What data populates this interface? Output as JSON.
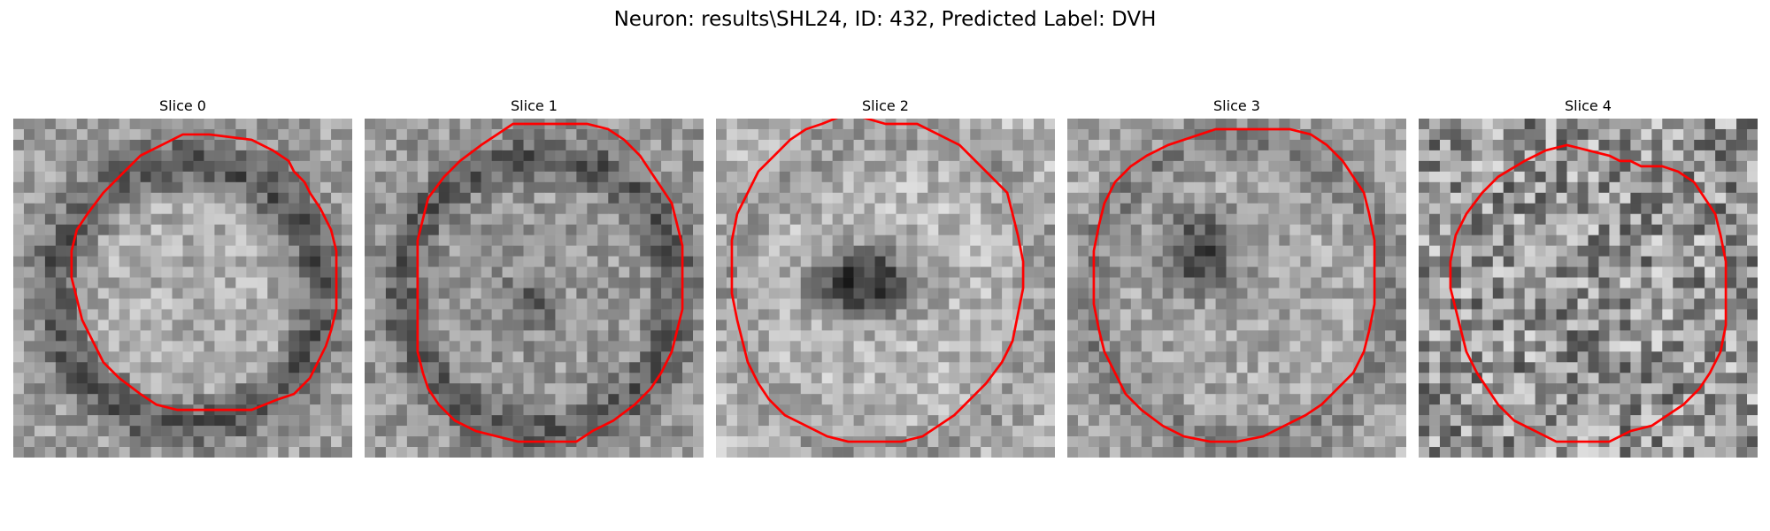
{
  "figure": {
    "title": "Neuron: results\\SHL24, ID: 432, Predicted Label: DVH"
  },
  "panels": [
    {
      "title": "Slice 0",
      "seed": 11,
      "pattern": "ring",
      "contour": [
        [
          28,
          5
        ],
        [
          32,
          3
        ],
        [
          37,
          3
        ],
        [
          45,
          4
        ],
        [
          49,
          6
        ],
        [
          52,
          8
        ],
        [
          53,
          10
        ],
        [
          55,
          12
        ],
        [
          56,
          14
        ],
        [
          58,
          17
        ],
        [
          60,
          21
        ],
        [
          61,
          25
        ],
        [
          61,
          30
        ],
        [
          61,
          36
        ],
        [
          60,
          40
        ],
        [
          59,
          43
        ],
        [
          58,
          45
        ],
        [
          56,
          49
        ],
        [
          53,
          52
        ],
        [
          50,
          53
        ],
        [
          45,
          55
        ],
        [
          38,
          55
        ],
        [
          31,
          55
        ],
        [
          27,
          54
        ],
        [
          24,
          52
        ],
        [
          20,
          49
        ],
        [
          17,
          46
        ],
        [
          15,
          42
        ],
        [
          13,
          38
        ],
        [
          12,
          34
        ],
        [
          11,
          30
        ],
        [
          11,
          25
        ],
        [
          12,
          21
        ],
        [
          14,
          18
        ],
        [
          17,
          14
        ],
        [
          21,
          10
        ],
        [
          24,
          7
        ]
      ]
    },
    {
      "title": "Slice 1",
      "seed": 23,
      "pattern": "ring-dark-center",
      "contour": [
        [
          28,
          1
        ],
        [
          35,
          1
        ],
        [
          42,
          1
        ],
        [
          46,
          2
        ],
        [
          49,
          4
        ],
        [
          52,
          7
        ],
        [
          54,
          10
        ],
        [
          56,
          13
        ],
        [
          58,
          16
        ],
        [
          59,
          20
        ],
        [
          60,
          24
        ],
        [
          60,
          30
        ],
        [
          60,
          36
        ],
        [
          59,
          40
        ],
        [
          58,
          44
        ],
        [
          56,
          48
        ],
        [
          54,
          51
        ],
        [
          51,
          54
        ],
        [
          47,
          57
        ],
        [
          43,
          59
        ],
        [
          40,
          61
        ],
        [
          35,
          61
        ],
        [
          29,
          61
        ],
        [
          25,
          60
        ],
        [
          21,
          59
        ],
        [
          17,
          57
        ],
        [
          14,
          54
        ],
        [
          12,
          51
        ],
        [
          11,
          48
        ],
        [
          10,
          44
        ],
        [
          10,
          40
        ],
        [
          10,
          34
        ],
        [
          10,
          28
        ],
        [
          10,
          23
        ],
        [
          11,
          19
        ],
        [
          12,
          15
        ],
        [
          15,
          11
        ],
        [
          18,
          8
        ],
        [
          22,
          5
        ],
        [
          25,
          3
        ]
      ]
    },
    {
      "title": "Slice 2",
      "seed": 37,
      "pattern": "dark-center",
      "contour": [
        [
          25,
          -1
        ],
        [
          32,
          1
        ],
        [
          38,
          1
        ],
        [
          42,
          3
        ],
        [
          46,
          5
        ],
        [
          49,
          8
        ],
        [
          52,
          11
        ],
        [
          55,
          14
        ],
        [
          56,
          18
        ],
        [
          57,
          22
        ],
        [
          58,
          27
        ],
        [
          58,
          32
        ],
        [
          57,
          37
        ],
        [
          56,
          42
        ],
        [
          54,
          46
        ],
        [
          51,
          50
        ],
        [
          48,
          53
        ],
        [
          45,
          56
        ],
        [
          42,
          58
        ],
        [
          39,
          60
        ],
        [
          35,
          61
        ],
        [
          30,
          61
        ],
        [
          25,
          61
        ],
        [
          21,
          60
        ],
        [
          17,
          58
        ],
        [
          13,
          56
        ],
        [
          10,
          53
        ],
        [
          8,
          50
        ],
        [
          6,
          46
        ],
        [
          5,
          42
        ],
        [
          4,
          38
        ],
        [
          3,
          33
        ],
        [
          3,
          28
        ],
        [
          3,
          23
        ],
        [
          4,
          18
        ],
        [
          6,
          14
        ],
        [
          8,
          10
        ],
        [
          11,
          7
        ],
        [
          14,
          4
        ],
        [
          17,
          2
        ],
        [
          20,
          1
        ]
      ]
    },
    {
      "title": "Slice 3",
      "seed": 53,
      "pattern": "dark-upper",
      "contour": [
        [
          22,
          4
        ],
        [
          28,
          2
        ],
        [
          35,
          2
        ],
        [
          42,
          2
        ],
        [
          46,
          3
        ],
        [
          49,
          5
        ],
        [
          52,
          8
        ],
        [
          54,
          11
        ],
        [
          56,
          14
        ],
        [
          57,
          18
        ],
        [
          58,
          23
        ],
        [
          58,
          29
        ],
        [
          58,
          35
        ],
        [
          57,
          40
        ],
        [
          56,
          44
        ],
        [
          54,
          48
        ],
        [
          51,
          51
        ],
        [
          48,
          54
        ],
        [
          45,
          56
        ],
        [
          41,
          58
        ],
        [
          37,
          60
        ],
        [
          32,
          61
        ],
        [
          27,
          61
        ],
        [
          22,
          60
        ],
        [
          18,
          58
        ],
        [
          14,
          55
        ],
        [
          11,
          52
        ],
        [
          9,
          48
        ],
        [
          7,
          44
        ],
        [
          6,
          40
        ],
        [
          5,
          35
        ],
        [
          5,
          30
        ],
        [
          5,
          25
        ],
        [
          6,
          20
        ],
        [
          7,
          16
        ],
        [
          9,
          12
        ],
        [
          12,
          9
        ],
        [
          15,
          7
        ],
        [
          19,
          5
        ]
      ]
    },
    {
      "title": "Slice 4",
      "seed": 71,
      "pattern": "speckle",
      "contour": [
        [
          20,
          8
        ],
        [
          24,
          6
        ],
        [
          28,
          5
        ],
        [
          32,
          6
        ],
        [
          36,
          7
        ],
        [
          38,
          8
        ],
        [
          40,
          8
        ],
        [
          42,
          9
        ],
        [
          46,
          9
        ],
        [
          49,
          10
        ],
        [
          52,
          12
        ],
        [
          54,
          15
        ],
        [
          56,
          18
        ],
        [
          57,
          22
        ],
        [
          58,
          27
        ],
        [
          58,
          33
        ],
        [
          58,
          39
        ],
        [
          57,
          44
        ],
        [
          55,
          48
        ],
        [
          53,
          51
        ],
        [
          50,
          54
        ],
        [
          47,
          56
        ],
        [
          44,
          58
        ],
        [
          40,
          59
        ],
        [
          36,
          61
        ],
        [
          31,
          61
        ],
        [
          26,
          61
        ],
        [
          22,
          59
        ],
        [
          18,
          57
        ],
        [
          15,
          54
        ],
        [
          13,
          51
        ],
        [
          11,
          48
        ],
        [
          9,
          44
        ],
        [
          8,
          40
        ],
        [
          7,
          36
        ],
        [
          6,
          32
        ],
        [
          6,
          27
        ],
        [
          7,
          22
        ],
        [
          9,
          18
        ],
        [
          12,
          14
        ],
        [
          15,
          11
        ]
      ]
    }
  ]
}
